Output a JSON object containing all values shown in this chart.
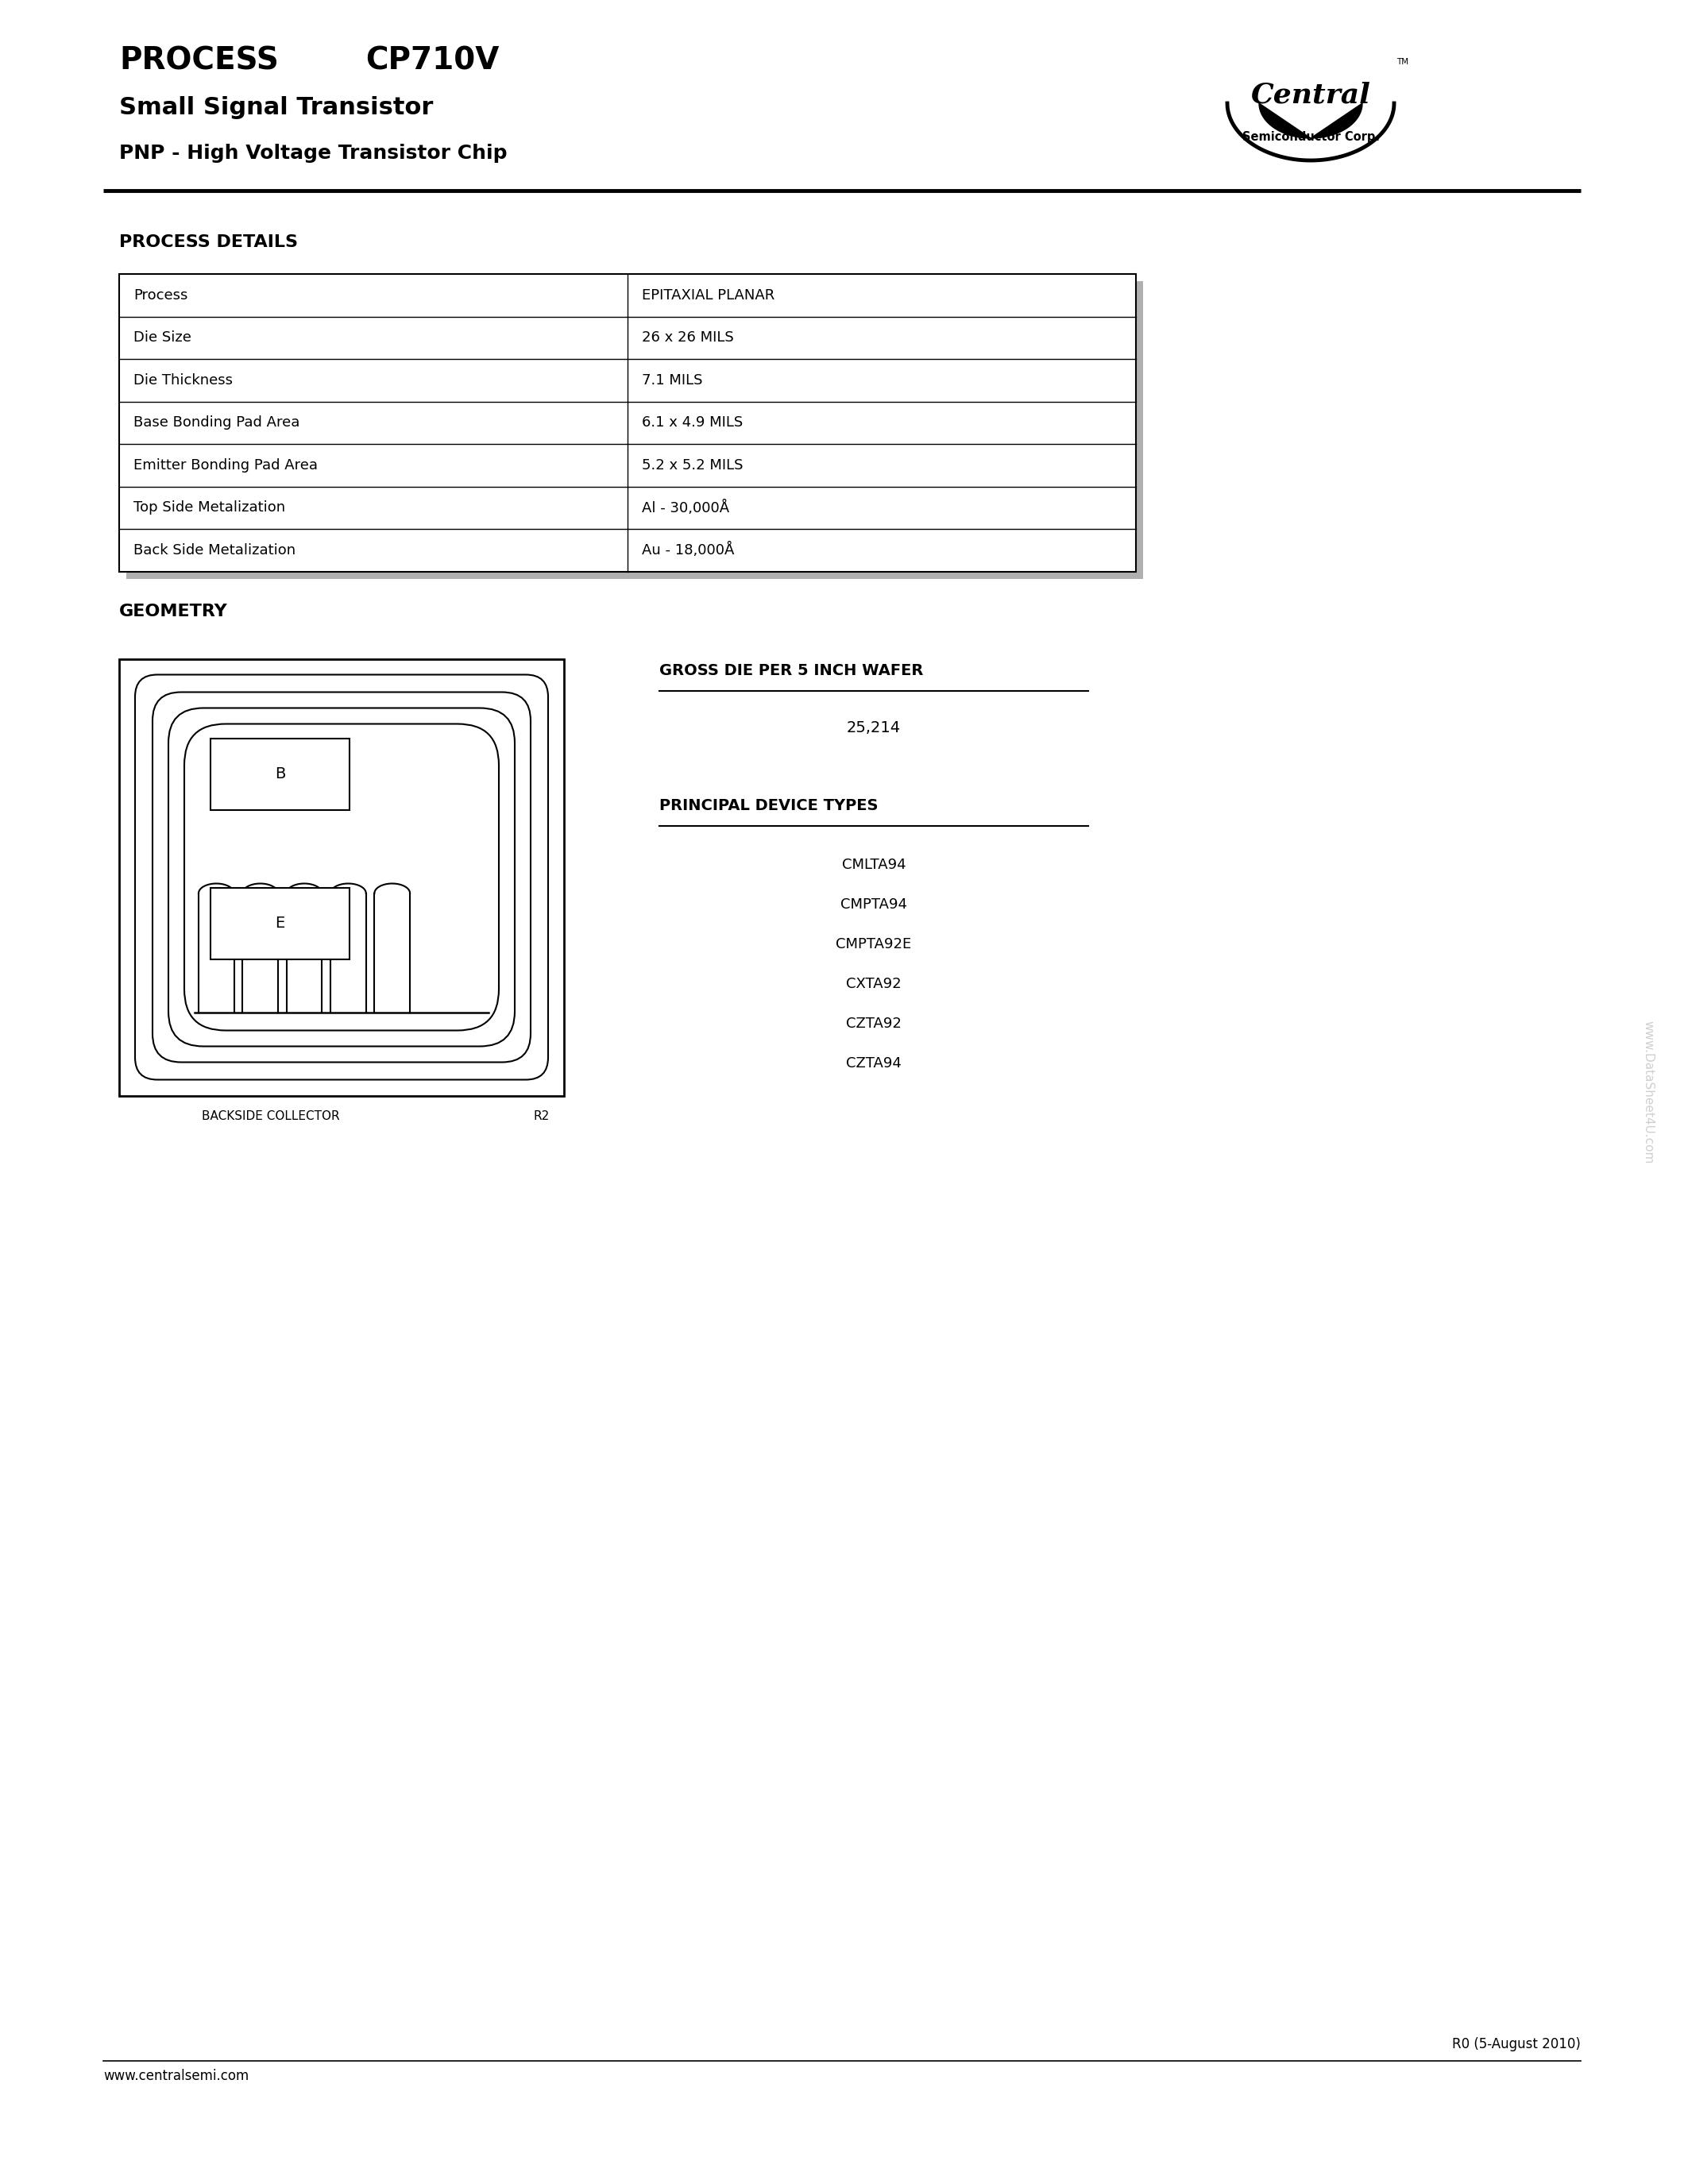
{
  "title_process": "PROCESS",
  "title_model": "CP710V",
  "subtitle1": "Small Signal Transistor",
  "subtitle2": "PNP - High Voltage Transistor Chip",
  "section_process_details": "PROCESS DETAILS",
  "table_rows": [
    [
      "Process",
      "EPITAXIAL PLANAR"
    ],
    [
      "Die Size",
      "26 x 26 MILS"
    ],
    [
      "Die Thickness",
      "7.1 MILS"
    ],
    [
      "Base Bonding Pad Area",
      "6.1 x 4.9 MILS"
    ],
    [
      "Emitter Bonding Pad Area",
      "5.2 x 5.2 MILS"
    ],
    [
      "Top Side Metalization",
      "Al - 30,000Å"
    ],
    [
      "Back Side Metalization",
      "Au - 18,000Å"
    ]
  ],
  "section_geometry": "GEOMETRY",
  "gross_die_label": "GROSS DIE PER 5 INCH WAFER",
  "gross_die_value": "25,214",
  "principal_label": "PRINCIPAL DEVICE TYPES",
  "device_types": [
    "CMLTA94",
    "CMPTA94",
    "CMPTA92E",
    "CXTA92",
    "CZTA92",
    "CZTA94"
  ],
  "backside_label": "BACKSIDE COLLECTOR",
  "r2_label": "R2",
  "footer_revision": "R0 (5-August 2010)",
  "footer_website": "www.centralsemi.com",
  "watermark": "www.DataSheet4U.com",
  "bg_color": "#ffffff",
  "text_color": "#000000",
  "table_border_color": "#000000",
  "header_line_color": "#000000"
}
